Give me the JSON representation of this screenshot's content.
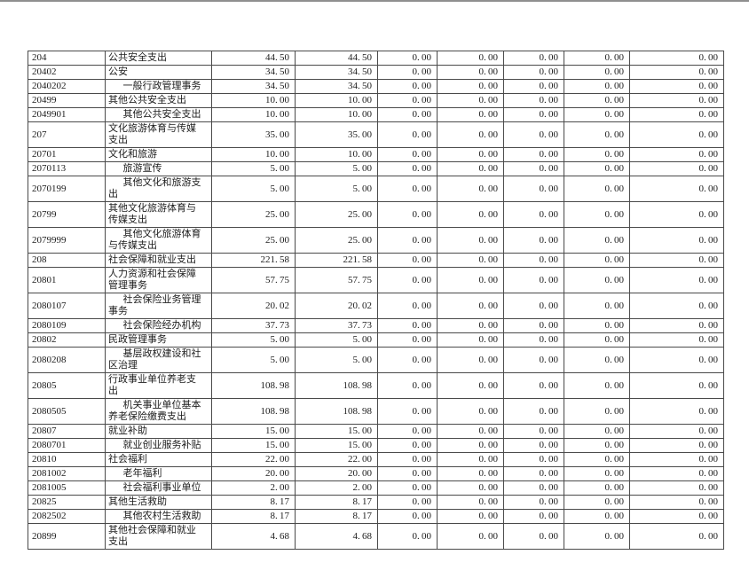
{
  "page": {
    "background_color": "#ffffff",
    "top_edge_line_color": "#8f8f8f",
    "text_color": "#1c1c1c",
    "table_border_color": "#4a4a4a"
  },
  "table": {
    "columns": [
      "code",
      "item-name",
      "amount-1",
      "amount-2",
      "amount-3",
      "amount-4",
      "amount-5",
      "amount-6",
      "amount-7"
    ],
    "rows": [
      {
        "code": "204",
        "name": "公共安全支出",
        "indent": false,
        "values": [
          "44.50",
          "44.50",
          "0.00",
          "0.00",
          "0.00",
          "0.00",
          "0.00"
        ]
      },
      {
        "code": "20402",
        "name": "公安",
        "indent": false,
        "values": [
          "34.50",
          "34.50",
          "0.00",
          "0.00",
          "0.00",
          "0.00",
          "0.00"
        ]
      },
      {
        "code": "2040202",
        "name": "一般行政管理事务",
        "indent": true,
        "values": [
          "34.50",
          "34.50",
          "0.00",
          "0.00",
          "0.00",
          "0.00",
          "0.00"
        ]
      },
      {
        "code": "20499",
        "name": "其他公共安全支出",
        "indent": false,
        "values": [
          "10.00",
          "10.00",
          "0.00",
          "0.00",
          "0.00",
          "0.00",
          "0.00"
        ]
      },
      {
        "code": "2049901",
        "name": "其他公共安全支出",
        "indent": true,
        "values": [
          "10.00",
          "10.00",
          "0.00",
          "0.00",
          "0.00",
          "0.00",
          "0.00"
        ]
      },
      {
        "code": "207",
        "name": "文化旅游体育与传媒支出",
        "indent": false,
        "values": [
          "35.00",
          "35.00",
          "0.00",
          "0.00",
          "0.00",
          "0.00",
          "0.00"
        ]
      },
      {
        "code": "20701",
        "name": "文化和旅游",
        "indent": false,
        "values": [
          "10.00",
          "10.00",
          "0.00",
          "0.00",
          "0.00",
          "0.00",
          "0.00"
        ]
      },
      {
        "code": "2070113",
        "name": "旅游宣传",
        "indent": true,
        "values": [
          "5.00",
          "5.00",
          "0.00",
          "0.00",
          "0.00",
          "0.00",
          "0.00"
        ]
      },
      {
        "code": "2070199",
        "name": "其他文化和旅游支出",
        "indent": true,
        "values": [
          "5.00",
          "5.00",
          "0.00",
          "0.00",
          "0.00",
          "0.00",
          "0.00"
        ]
      },
      {
        "code": "20799",
        "name": "其他文化旅游体育与传媒支出",
        "indent": false,
        "values": [
          "25.00",
          "25.00",
          "0.00",
          "0.00",
          "0.00",
          "0.00",
          "0.00"
        ]
      },
      {
        "code": "2079999",
        "name": "其他文化旅游体育与传媒支出",
        "indent": true,
        "values": [
          "25.00",
          "25.00",
          "0.00",
          "0.00",
          "0.00",
          "0.00",
          "0.00"
        ]
      },
      {
        "code": "208",
        "name": "社会保障和就业支出",
        "indent": false,
        "values": [
          "221.58",
          "221.58",
          "0.00",
          "0.00",
          "0.00",
          "0.00",
          "0.00"
        ]
      },
      {
        "code": "20801",
        "name": "人力资源和社会保障管理事务",
        "indent": false,
        "values": [
          "57.75",
          "57.75",
          "0.00",
          "0.00",
          "0.00",
          "0.00",
          "0.00"
        ]
      },
      {
        "code": "2080107",
        "name": "社会保险业务管理事务",
        "indent": true,
        "values": [
          "20.02",
          "20.02",
          "0.00",
          "0.00",
          "0.00",
          "0.00",
          "0.00"
        ]
      },
      {
        "code": "2080109",
        "name": "社会保险经办机构",
        "indent": true,
        "values": [
          "37.73",
          "37.73",
          "0.00",
          "0.00",
          "0.00",
          "0.00",
          "0.00"
        ]
      },
      {
        "code": "20802",
        "name": "民政管理事务",
        "indent": false,
        "values": [
          "5.00",
          "5.00",
          "0.00",
          "0.00",
          "0.00",
          "0.00",
          "0.00"
        ]
      },
      {
        "code": "2080208",
        "name": "基层政权建设和社区治理",
        "indent": true,
        "values": [
          "5.00",
          "5.00",
          "0.00",
          "0.00",
          "0.00",
          "0.00",
          "0.00"
        ]
      },
      {
        "code": "20805",
        "name": "行政事业单位养老支出",
        "indent": false,
        "values": [
          "108.98",
          "108.98",
          "0.00",
          "0.00",
          "0.00",
          "0.00",
          "0.00"
        ]
      },
      {
        "code": "2080505",
        "name": "机关事业单位基本养老保险缴费支出",
        "indent": true,
        "values": [
          "108.98",
          "108.98",
          "0.00",
          "0.00",
          "0.00",
          "0.00",
          "0.00"
        ]
      },
      {
        "code": "20807",
        "name": "就业补助",
        "indent": false,
        "values": [
          "15.00",
          "15.00",
          "0.00",
          "0.00",
          "0.00",
          "0.00",
          "0.00"
        ]
      },
      {
        "code": "2080701",
        "name": "就业创业服务补贴",
        "indent": true,
        "values": [
          "15.00",
          "15.00",
          "0.00",
          "0.00",
          "0.00",
          "0.00",
          "0.00"
        ]
      },
      {
        "code": "20810",
        "name": "社会福利",
        "indent": false,
        "values": [
          "22.00",
          "22.00",
          "0.00",
          "0.00",
          "0.00",
          "0.00",
          "0.00"
        ]
      },
      {
        "code": "2081002",
        "name": "老年福利",
        "indent": true,
        "values": [
          "20.00",
          "20.00",
          "0.00",
          "0.00",
          "0.00",
          "0.00",
          "0.00"
        ]
      },
      {
        "code": "2081005",
        "name": "社会福利事业单位",
        "indent": true,
        "values": [
          "2.00",
          "2.00",
          "0.00",
          "0.00",
          "0.00",
          "0.00",
          "0.00"
        ]
      },
      {
        "code": "20825",
        "name": "其他生活救助",
        "indent": false,
        "values": [
          "8.17",
          "8.17",
          "0.00",
          "0.00",
          "0.00",
          "0.00",
          "0.00"
        ]
      },
      {
        "code": "2082502",
        "name": "其他农村生活救助",
        "indent": true,
        "values": [
          "8.17",
          "8.17",
          "0.00",
          "0.00",
          "0.00",
          "0.00",
          "0.00"
        ]
      },
      {
        "code": "20899",
        "name": "其他社会保障和就业支出",
        "indent": false,
        "values": [
          "4.68",
          "4.68",
          "0.00",
          "0.00",
          "0.00",
          "0.00",
          "0.00"
        ]
      }
    ]
  }
}
